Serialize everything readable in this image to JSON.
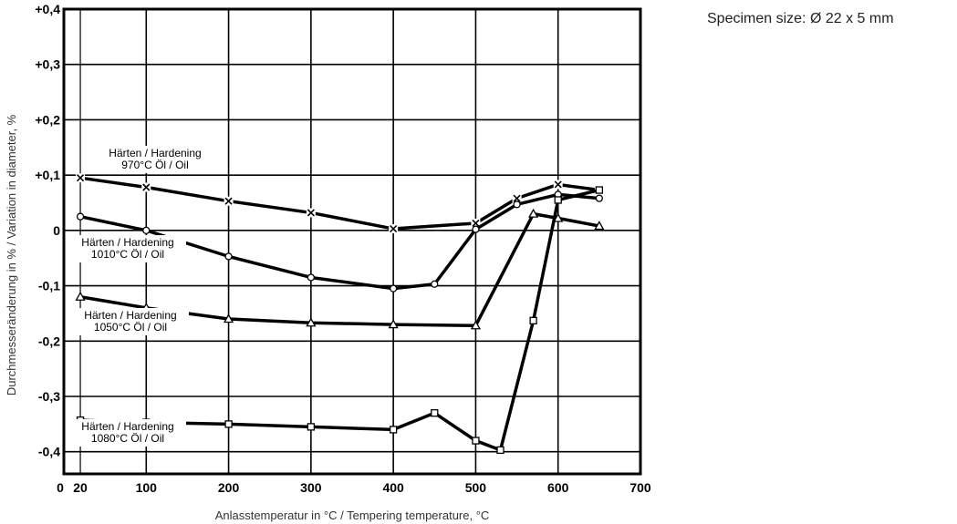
{
  "note": "Specimen size: Ø 22 x 5 mm",
  "chart_data": {
    "type": "line",
    "xlabel": "Anlasstemperatur in °C / Tempering temperature, °C",
    "ylabel": "Durchmesseränderung in % / Variation in diameter, %",
    "xlim": [
      0,
      700
    ],
    "ylim": [
      -0.44,
      0.4
    ],
    "grid": true,
    "x_ticks": [
      {
        "v": 0,
        "label": "0"
      },
      {
        "v": 20,
        "label": "20"
      },
      {
        "v": 100,
        "label": "100"
      },
      {
        "v": 200,
        "label": "200"
      },
      {
        "v": 300,
        "label": "300"
      },
      {
        "v": 400,
        "label": "400"
      },
      {
        "v": 500,
        "label": "500"
      },
      {
        "v": 600,
        "label": "600"
      },
      {
        "v": 700,
        "label": "700"
      }
    ],
    "y_ticks": [
      {
        "v": 0.4,
        "label": "+0,4"
      },
      {
        "v": 0.3,
        "label": "+0,3"
      },
      {
        "v": 0.2,
        "label": "+0,2"
      },
      {
        "v": 0.1,
        "label": "+0,1"
      },
      {
        "v": 0,
        "label": "0"
      },
      {
        "v": -0.1,
        "label": "-0,1"
      },
      {
        "v": -0.2,
        "label": "-0,2"
      },
      {
        "v": -0.3,
        "label": "-0,3"
      },
      {
        "v": -0.4,
        "label": "-0,4"
      }
    ],
    "series": [
      {
        "marker": "x",
        "label_lines": [
          "Härten / Hardening",
          "970°C  Öl / Oil"
        ],
        "points": [
          [
            20,
            0.095
          ],
          [
            100,
            0.078
          ],
          [
            200,
            0.053
          ],
          [
            300,
            0.032
          ],
          [
            400,
            0.003
          ],
          [
            500,
            0.013
          ],
          [
            550,
            0.058
          ],
          [
            600,
            0.083
          ],
          [
            650,
            0.073
          ]
        ]
      },
      {
        "marker": "circle",
        "label_lines": [
          "Härten / Hardening",
          "1010°C  Öl / Oil"
        ],
        "points": [
          [
            20,
            0.025
          ],
          [
            100,
            0.0
          ],
          [
            200,
            -0.047
          ],
          [
            300,
            -0.085
          ],
          [
            400,
            -0.105
          ],
          [
            450,
            -0.097
          ],
          [
            500,
            0.002
          ],
          [
            550,
            0.047
          ],
          [
            600,
            0.065
          ],
          [
            650,
            0.058
          ]
        ]
      },
      {
        "marker": "triangle",
        "label_lines": [
          "Härten / Hardening",
          "1050°C  Öl / Oil"
        ],
        "points": [
          [
            20,
            -0.12
          ],
          [
            100,
            -0.14
          ],
          [
            200,
            -0.16
          ],
          [
            300,
            -0.167
          ],
          [
            400,
            -0.17
          ],
          [
            500,
            -0.172
          ],
          [
            570,
            0.03
          ],
          [
            600,
            0.022
          ],
          [
            650,
            0.008
          ]
        ]
      },
      {
        "marker": "square",
        "label_lines": [
          "Härten / Hardening",
          "1080°C  Öl / Oil"
        ],
        "points": [
          [
            20,
            -0.343
          ],
          [
            100,
            -0.347
          ],
          [
            200,
            -0.35
          ],
          [
            300,
            -0.355
          ],
          [
            400,
            -0.36
          ],
          [
            450,
            -0.33
          ],
          [
            500,
            -0.38
          ],
          [
            530,
            -0.397
          ],
          [
            570,
            -0.163
          ],
          [
            600,
            0.055
          ],
          [
            650,
            0.073
          ]
        ]
      }
    ]
  }
}
